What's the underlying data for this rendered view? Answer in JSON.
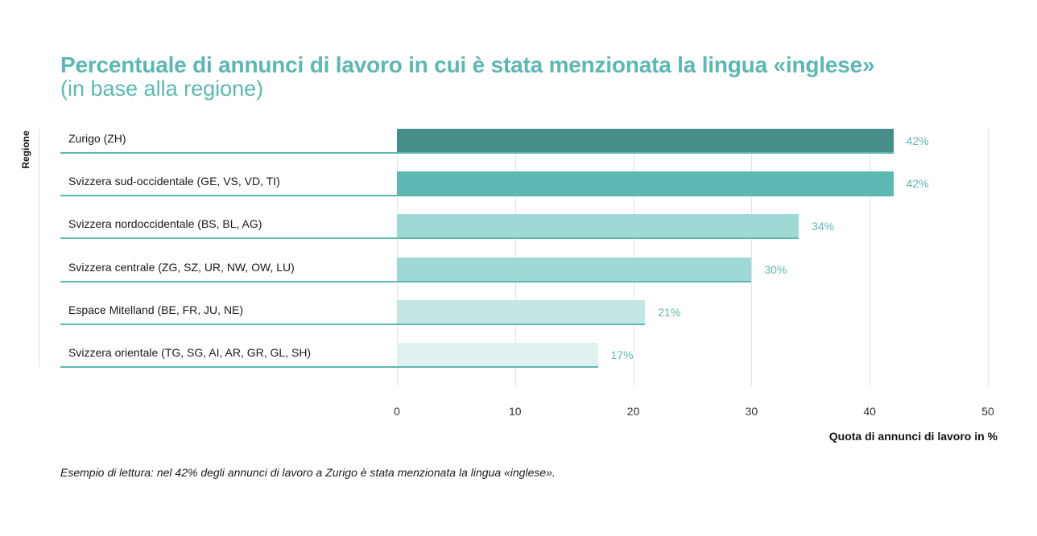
{
  "header": {
    "title": "Percentuale di annunci di lavoro in cui è stata menzionata la lingua «inglese»",
    "subtitle": "(in base alla regione)"
  },
  "axes": {
    "y_label": "Regione",
    "x_label": "Quota di annunci di lavoro in %",
    "x_ticks": [
      "0",
      "10",
      "20",
      "30",
      "40",
      "50"
    ]
  },
  "rows": [
    {
      "label": "Zurigo (ZH)",
      "value": 42,
      "value_label": "42%",
      "color": "#478e8a"
    },
    {
      "label": "Svizzera sud-occidentale (GE, VS, VD, TI)",
      "value": 42,
      "value_label": "42%",
      "color": "#5cb8b2"
    },
    {
      "label": "Svizzera nordoccidentale (BS, BL, AG)",
      "value": 34,
      "value_label": "34%",
      "color": "#9fd9d6"
    },
    {
      "label": "Svizzera centrale (ZG, SZ, UR, NW, OW, LU)",
      "value": 30,
      "value_label": "30%",
      "color": "#9fd9d6"
    },
    {
      "label": "Espace Mitelland (BE, FR, JU, NE)",
      "value": 21,
      "value_label": "21%",
      "color": "#c2e6e4"
    },
    {
      "label": "Svizzera orientale (TG, SG, AI, AR, GR, GL, SH)",
      "value": 17,
      "value_label": "17%",
      "color": "#dff1f0"
    }
  ],
  "footer": {
    "note": "Esempio di lettura: nel 42% degli annunci di lavoro a Zurigo è stata menzionata la lingua «inglese»."
  },
  "colors": {
    "accent": "#5cb8b2",
    "dark_bar": "#478e8a",
    "gridline": "#e2e2e2"
  },
  "chart_data": {
    "type": "bar",
    "orientation": "horizontal",
    "title": "Percentuale di annunci di lavoro in cui è stata menzionata la lingua «inglese»",
    "subtitle": "(in base alla regione)",
    "categories": [
      "Zurigo (ZH)",
      "Svizzera sud-occidentale (GE, VS, VD, TI)",
      "Svizzera nordoccidentale (BS, BL, AG)",
      "Svizzera centrale (ZG, SZ, UR, NW, OW, LU)",
      "Espace Mitelland (BE, FR, JU, NE)",
      "Svizzera orientale (TG, SG, AI, AR, GR, GL, SH)"
    ],
    "values": [
      42,
      42,
      34,
      30,
      21,
      17
    ],
    "data_labels": [
      "42%",
      "42%",
      "34%",
      "30%",
      "21%",
      "17%"
    ],
    "xlabel": "Quota di annunci di lavoro in %",
    "ylabel": "Regione",
    "xlim": [
      0,
      50
    ],
    "x_ticks": [
      0,
      10,
      20,
      30,
      40,
      50
    ],
    "grid": "vertical",
    "legend": null,
    "annotation": "Esempio di lettura: nel 42% degli annunci di lavoro a Zurigo è stata menzionata la lingua «inglese»."
  }
}
